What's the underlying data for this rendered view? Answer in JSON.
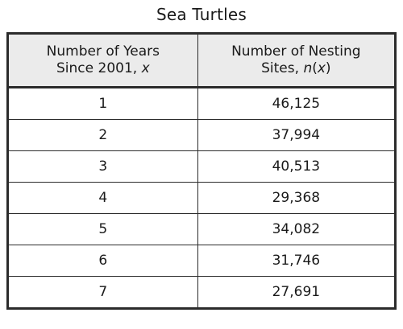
{
  "title": "Sea Turtles",
  "table": {
    "headers": [
      {
        "line1": "Number of Years",
        "line2_text": "Since 2001, ",
        "line2_var": "x",
        "line2_suffix": ""
      },
      {
        "line1": "Number of Nesting",
        "line2_text": "Sites, ",
        "line2_var": "n",
        "line2_paren": "(",
        "line2_var2": "x",
        "line2_suffix": ")"
      }
    ],
    "rows": [
      [
        "1",
        "46,125"
      ],
      [
        "2",
        "37,994"
      ],
      [
        "3",
        "40,513"
      ],
      [
        "4",
        "29,368"
      ],
      [
        "5",
        "34,082"
      ],
      [
        "6",
        "31,746"
      ],
      [
        "7",
        "27,691"
      ]
    ]
  }
}
